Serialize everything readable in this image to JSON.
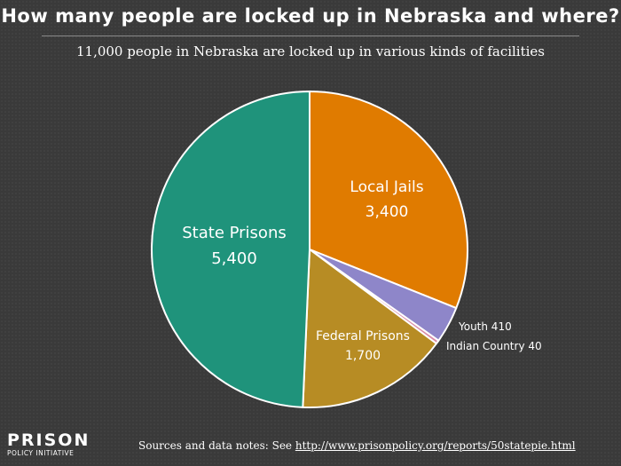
{
  "title": "How many people are locked up in Nebraska and where?",
  "subtitle": "11,000 people in Nebraska are locked up in various kinds of facilities",
  "logo": {
    "line1": "PRISON",
    "line2": "POLICY INITIATIVE"
  },
  "source": {
    "prefix": "Sources and data notes: See ",
    "link": "http://www.prisonpolicy.org/reports/50statepie.html"
  },
  "chart_data": {
    "type": "pie",
    "total": 11000,
    "slices": [
      {
        "name": "Local Jails",
        "label": "Local Jails",
        "value_label": "3,400",
        "value": 3400,
        "color": "#e07b00",
        "label_pos": "inside"
      },
      {
        "name": "Youth",
        "label": "Youth 410",
        "value": 410,
        "color": "#8e86c9",
        "label_pos": "outside"
      },
      {
        "name": "Indian Country",
        "label": "Indian Country 40",
        "value": 40,
        "color": "#d98aa6",
        "label_pos": "outside"
      },
      {
        "name": "Federal Prisons",
        "label": "Federal Prisons",
        "value_label": "1,700",
        "value": 1700,
        "color": "#b78c24",
        "label_pos": "inside"
      },
      {
        "name": "State Prisons",
        "label": "State Prisons",
        "value_label": "5,400",
        "value": 5400,
        "color": "#1f937b",
        "label_pos": "inside"
      }
    ]
  }
}
